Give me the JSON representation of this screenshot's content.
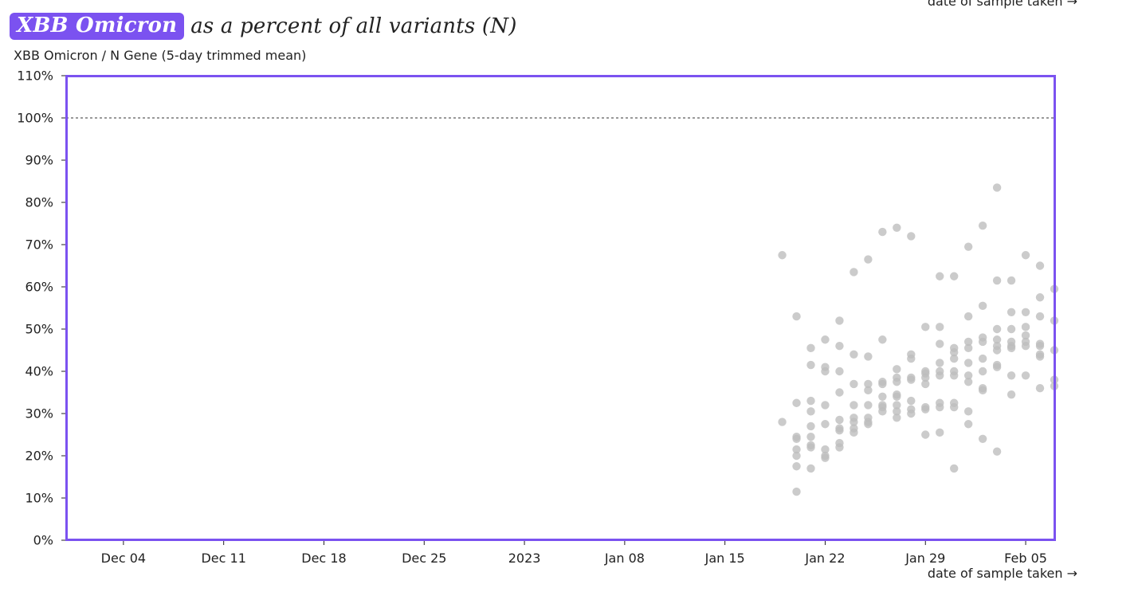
{
  "title": {
    "badge": "XBB Omicron",
    "rest": "as a percent of all variants (N)"
  },
  "colors": {
    "accent": "#7b52f0",
    "points": "#bdbdbd"
  },
  "chart_data": {
    "type": "scatter",
    "title": "XBB Omicron as a percent of all variants (N)",
    "ylabel": "XBB Omicron / N Gene (5-day trimmed mean)",
    "xlabel": "date of sample taken →",
    "ylim": [
      0,
      110
    ],
    "xlim": [
      "2022-11-30",
      "2023-02-07"
    ],
    "y_ticks": [
      "0%",
      "10%",
      "20%",
      "30%",
      "40%",
      "50%",
      "60%",
      "70%",
      "80%",
      "90%",
      "100%",
      "110%"
    ],
    "x_ticks": [
      {
        "date": "2022-12-04",
        "label": "Dec 04"
      },
      {
        "date": "2022-12-11",
        "label": "Dec 11"
      },
      {
        "date": "2022-12-18",
        "label": "Dec 18"
      },
      {
        "date": "2022-12-25",
        "label": "Dec 25"
      },
      {
        "date": "2023-01-01",
        "label": "2023"
      },
      {
        "date": "2023-01-08",
        "label": "Jan 08"
      },
      {
        "date": "2023-01-15",
        "label": "Jan 15"
      },
      {
        "date": "2023-01-22",
        "label": "Jan 22"
      },
      {
        "date": "2023-01-29",
        "label": "Jan 29"
      },
      {
        "date": "2023-02-05",
        "label": "Feb 05"
      }
    ],
    "reference_line": {
      "y": 100,
      "style": "dotted"
    },
    "grid": false,
    "points": [
      {
        "x": "2023-01-19",
        "y": 67.5
      },
      {
        "x": "2023-01-19",
        "y": 28
      },
      {
        "x": "2023-01-20",
        "y": 53
      },
      {
        "x": "2023-01-20",
        "y": 32.5
      },
      {
        "x": "2023-01-20",
        "y": 24.5
      },
      {
        "x": "2023-01-20",
        "y": 24
      },
      {
        "x": "2023-01-20",
        "y": 21.5
      },
      {
        "x": "2023-01-20",
        "y": 20
      },
      {
        "x": "2023-01-20",
        "y": 17.5
      },
      {
        "x": "2023-01-20",
        "y": 11.5
      },
      {
        "x": "2023-01-21",
        "y": 45.5
      },
      {
        "x": "2023-01-21",
        "y": 41.5
      },
      {
        "x": "2023-01-21",
        "y": 33
      },
      {
        "x": "2023-01-21",
        "y": 30.5
      },
      {
        "x": "2023-01-21",
        "y": 27
      },
      {
        "x": "2023-01-21",
        "y": 24.5
      },
      {
        "x": "2023-01-21",
        "y": 22.5
      },
      {
        "x": "2023-01-21",
        "y": 22
      },
      {
        "x": "2023-01-21",
        "y": 17
      },
      {
        "x": "2023-01-22",
        "y": 47.5
      },
      {
        "x": "2023-01-22",
        "y": 41
      },
      {
        "x": "2023-01-22",
        "y": 40
      },
      {
        "x": "2023-01-22",
        "y": 32
      },
      {
        "x": "2023-01-22",
        "y": 27.5
      },
      {
        "x": "2023-01-22",
        "y": 21.5
      },
      {
        "x": "2023-01-22",
        "y": 20
      },
      {
        "x": "2023-01-22",
        "y": 19.5
      },
      {
        "x": "2023-01-23",
        "y": 52
      },
      {
        "x": "2023-01-23",
        "y": 46
      },
      {
        "x": "2023-01-23",
        "y": 40
      },
      {
        "x": "2023-01-23",
        "y": 35
      },
      {
        "x": "2023-01-23",
        "y": 28.5
      },
      {
        "x": "2023-01-23",
        "y": 26
      },
      {
        "x": "2023-01-23",
        "y": 26.5
      },
      {
        "x": "2023-01-23",
        "y": 23
      },
      {
        "x": "2023-01-23",
        "y": 22
      },
      {
        "x": "2023-01-24",
        "y": 63.5
      },
      {
        "x": "2023-01-24",
        "y": 44
      },
      {
        "x": "2023-01-24",
        "y": 37
      },
      {
        "x": "2023-01-24",
        "y": 32
      },
      {
        "x": "2023-01-24",
        "y": 29
      },
      {
        "x": "2023-01-24",
        "y": 28
      },
      {
        "x": "2023-01-24",
        "y": 26.5
      },
      {
        "x": "2023-01-24",
        "y": 25.5
      },
      {
        "x": "2023-01-25",
        "y": 66.5
      },
      {
        "x": "2023-01-25",
        "y": 43.5
      },
      {
        "x": "2023-01-25",
        "y": 37
      },
      {
        "x": "2023-01-25",
        "y": 35.5
      },
      {
        "x": "2023-01-25",
        "y": 32
      },
      {
        "x": "2023-01-25",
        "y": 29
      },
      {
        "x": "2023-01-25",
        "y": 28
      },
      {
        "x": "2023-01-25",
        "y": 27.5
      },
      {
        "x": "2023-01-26",
        "y": 73
      },
      {
        "x": "2023-01-26",
        "y": 47.5
      },
      {
        "x": "2023-01-26",
        "y": 37.5
      },
      {
        "x": "2023-01-26",
        "y": 37
      },
      {
        "x": "2023-01-26",
        "y": 34
      },
      {
        "x": "2023-01-26",
        "y": 32
      },
      {
        "x": "2023-01-26",
        "y": 31.5
      },
      {
        "x": "2023-01-26",
        "y": 30.5
      },
      {
        "x": "2023-01-27",
        "y": 74
      },
      {
        "x": "2023-01-27",
        "y": 40.5
      },
      {
        "x": "2023-01-27",
        "y": 38.5
      },
      {
        "x": "2023-01-27",
        "y": 37.5
      },
      {
        "x": "2023-01-27",
        "y": 34.5
      },
      {
        "x": "2023-01-27",
        "y": 34
      },
      {
        "x": "2023-01-27",
        "y": 32
      },
      {
        "x": "2023-01-27",
        "y": 30.5
      },
      {
        "x": "2023-01-27",
        "y": 29
      },
      {
        "x": "2023-01-28",
        "y": 72
      },
      {
        "x": "2023-01-28",
        "y": 44
      },
      {
        "x": "2023-01-28",
        "y": 43
      },
      {
        "x": "2023-01-28",
        "y": 38.5
      },
      {
        "x": "2023-01-28",
        "y": 38
      },
      {
        "x": "2023-01-28",
        "y": 33
      },
      {
        "x": "2023-01-28",
        "y": 31
      },
      {
        "x": "2023-01-28",
        "y": 30
      },
      {
        "x": "2023-01-29",
        "y": 50.5
      },
      {
        "x": "2023-01-29",
        "y": 40
      },
      {
        "x": "2023-01-29",
        "y": 39.5
      },
      {
        "x": "2023-01-29",
        "y": 38.5
      },
      {
        "x": "2023-01-29",
        "y": 37
      },
      {
        "x": "2023-01-29",
        "y": 31
      },
      {
        "x": "2023-01-29",
        "y": 31.5
      },
      {
        "x": "2023-01-29",
        "y": 25
      },
      {
        "x": "2023-01-30",
        "y": 62.5
      },
      {
        "x": "2023-01-30",
        "y": 50.5
      },
      {
        "x": "2023-01-30",
        "y": 46.5
      },
      {
        "x": "2023-01-30",
        "y": 42
      },
      {
        "x": "2023-01-30",
        "y": 40
      },
      {
        "x": "2023-01-30",
        "y": 39
      },
      {
        "x": "2023-01-30",
        "y": 32.5
      },
      {
        "x": "2023-01-30",
        "y": 31.5
      },
      {
        "x": "2023-01-30",
        "y": 25.5
      },
      {
        "x": "2023-01-31",
        "y": 62.5
      },
      {
        "x": "2023-01-31",
        "y": 45.5
      },
      {
        "x": "2023-01-31",
        "y": 44.5
      },
      {
        "x": "2023-01-31",
        "y": 43
      },
      {
        "x": "2023-01-31",
        "y": 40
      },
      {
        "x": "2023-01-31",
        "y": 39
      },
      {
        "x": "2023-01-31",
        "y": 32.5
      },
      {
        "x": "2023-01-31",
        "y": 31.5
      },
      {
        "x": "2023-01-31",
        "y": 17
      },
      {
        "x": "2023-02-01",
        "y": 69.5
      },
      {
        "x": "2023-02-01",
        "y": 53
      },
      {
        "x": "2023-02-01",
        "y": 47
      },
      {
        "x": "2023-02-01",
        "y": 45.5
      },
      {
        "x": "2023-02-01",
        "y": 42
      },
      {
        "x": "2023-02-01",
        "y": 39
      },
      {
        "x": "2023-02-01",
        "y": 37.5
      },
      {
        "x": "2023-02-01",
        "y": 30.5
      },
      {
        "x": "2023-02-01",
        "y": 27.5
      },
      {
        "x": "2023-02-02",
        "y": 74.5
      },
      {
        "x": "2023-02-02",
        "y": 55.5
      },
      {
        "x": "2023-02-02",
        "y": 48
      },
      {
        "x": "2023-02-02",
        "y": 47
      },
      {
        "x": "2023-02-02",
        "y": 43
      },
      {
        "x": "2023-02-02",
        "y": 40
      },
      {
        "x": "2023-02-02",
        "y": 36
      },
      {
        "x": "2023-02-02",
        "y": 35.5
      },
      {
        "x": "2023-02-02",
        "y": 24
      },
      {
        "x": "2023-02-03",
        "y": 83.5
      },
      {
        "x": "2023-02-03",
        "y": 61.5
      },
      {
        "x": "2023-02-03",
        "y": 50
      },
      {
        "x": "2023-02-03",
        "y": 47.5
      },
      {
        "x": "2023-02-03",
        "y": 46
      },
      {
        "x": "2023-02-03",
        "y": 45
      },
      {
        "x": "2023-02-03",
        "y": 41.5
      },
      {
        "x": "2023-02-03",
        "y": 41
      },
      {
        "x": "2023-02-03",
        "y": 21
      },
      {
        "x": "2023-02-04",
        "y": 61.5
      },
      {
        "x": "2023-02-04",
        "y": 54
      },
      {
        "x": "2023-02-04",
        "y": 50
      },
      {
        "x": "2023-02-04",
        "y": 47
      },
      {
        "x": "2023-02-04",
        "y": 46
      },
      {
        "x": "2023-02-04",
        "y": 45.5
      },
      {
        "x": "2023-02-04",
        "y": 39
      },
      {
        "x": "2023-02-04",
        "y": 34.5
      },
      {
        "x": "2023-02-05",
        "y": 67.5
      },
      {
        "x": "2023-02-05",
        "y": 54
      },
      {
        "x": "2023-02-05",
        "y": 50.5
      },
      {
        "x": "2023-02-05",
        "y": 48.5
      },
      {
        "x": "2023-02-05",
        "y": 47
      },
      {
        "x": "2023-02-05",
        "y": 46
      },
      {
        "x": "2023-02-05",
        "y": 39
      },
      {
        "x": "2023-02-06",
        "y": 65
      },
      {
        "x": "2023-02-06",
        "y": 57.5
      },
      {
        "x": "2023-02-06",
        "y": 53
      },
      {
        "x": "2023-02-06",
        "y": 46.5
      },
      {
        "x": "2023-02-06",
        "y": 46
      },
      {
        "x": "2023-02-06",
        "y": 44
      },
      {
        "x": "2023-02-06",
        "y": 43.5
      },
      {
        "x": "2023-02-06",
        "y": 36
      },
      {
        "x": "2023-02-07",
        "y": 59.5
      },
      {
        "x": "2023-02-07",
        "y": 52
      },
      {
        "x": "2023-02-07",
        "y": 45
      },
      {
        "x": "2023-02-07",
        "y": 38
      },
      {
        "x": "2023-02-07",
        "y": 36.5
      }
    ]
  }
}
